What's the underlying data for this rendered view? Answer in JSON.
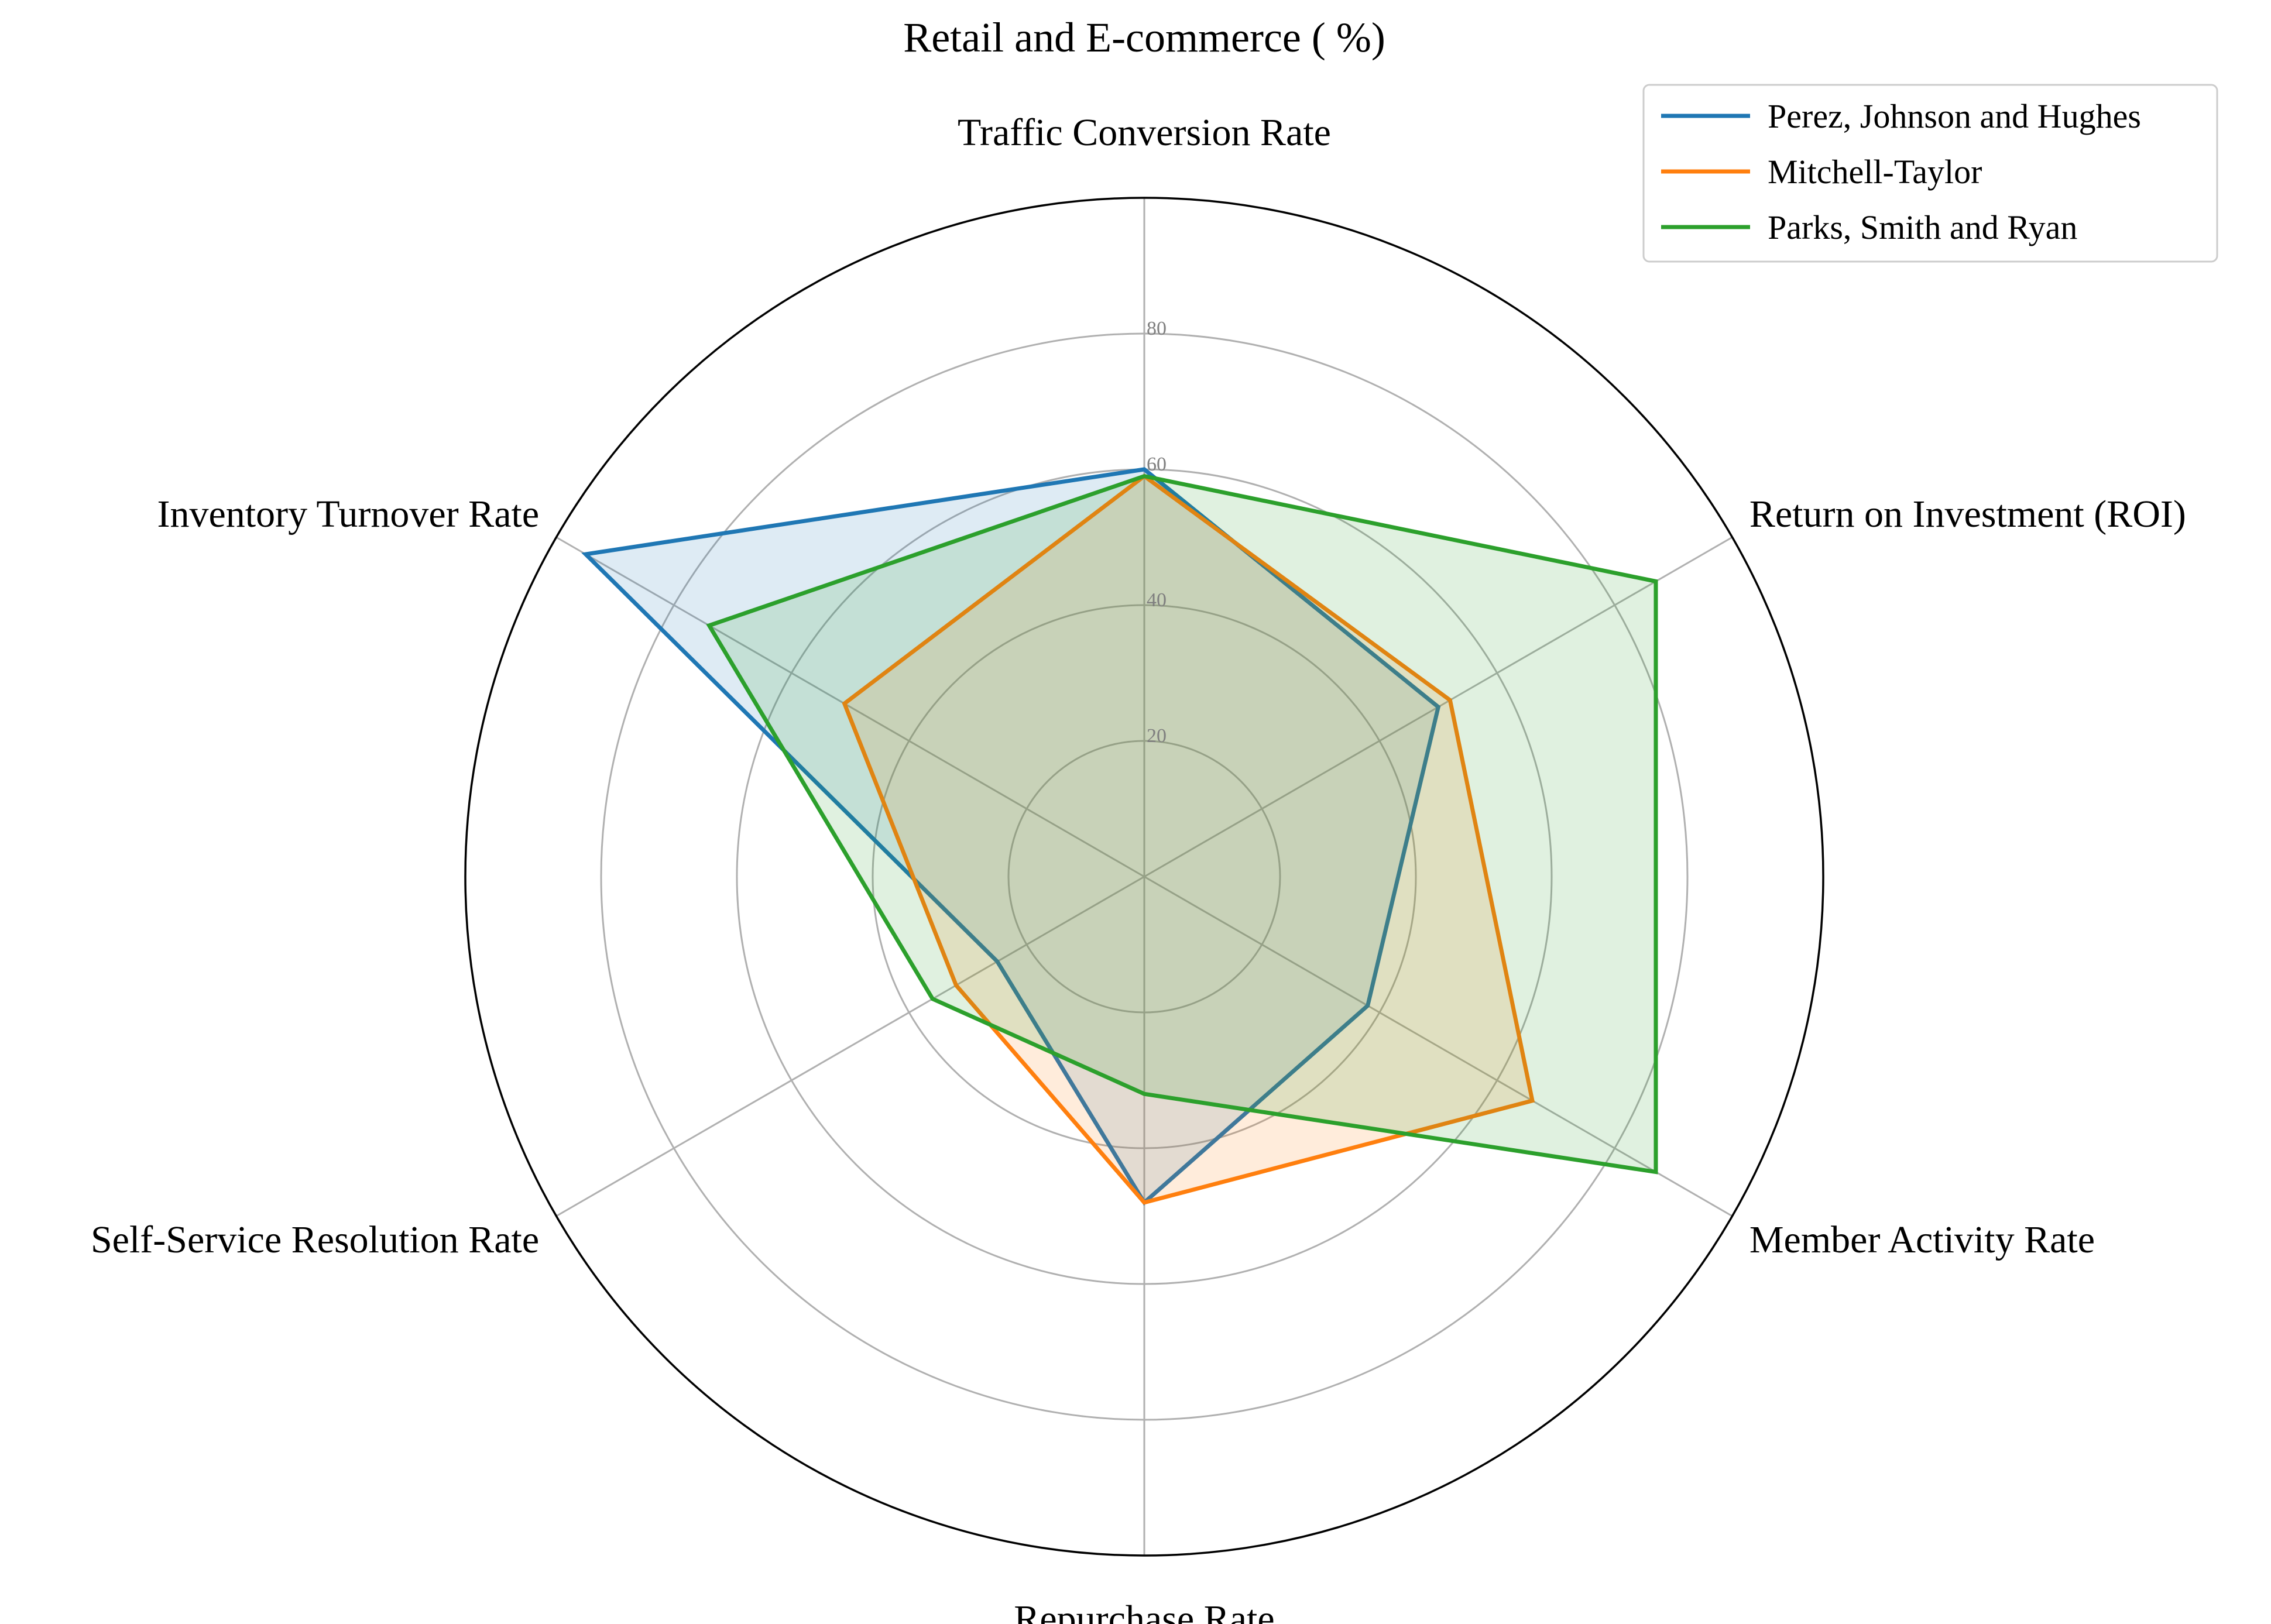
{
  "chart_data": {
    "type": "radar",
    "title": "Retail and E-commerce ( %)",
    "axes": [
      "Traffic Conversion Rate",
      "Return on Investment (ROI)",
      "Member Activity Rate",
      "Repurchase Rate",
      "Self-Service Resolution Rate",
      "Inventory Turnover Rate"
    ],
    "rlim": [
      0,
      100
    ],
    "rticks": [
      20,
      40,
      60,
      80
    ],
    "grid": true,
    "legend_position": "top-right",
    "series": [
      {
        "name": "Perez, Johnson and Hughes",
        "color": "#1f77b4",
        "values": [
          60,
          50,
          38,
          48,
          25,
          95
        ]
      },
      {
        "name": "Mitchell-Taylor",
        "color": "#ff7f0e",
        "values": [
          59,
          52,
          66,
          48,
          32,
          51
        ]
      },
      {
        "name": "Parks, Smith and Ryan",
        "color": "#2ca02c",
        "values": [
          59,
          87,
          87,
          32,
          36,
          74
        ]
      }
    ]
  }
}
